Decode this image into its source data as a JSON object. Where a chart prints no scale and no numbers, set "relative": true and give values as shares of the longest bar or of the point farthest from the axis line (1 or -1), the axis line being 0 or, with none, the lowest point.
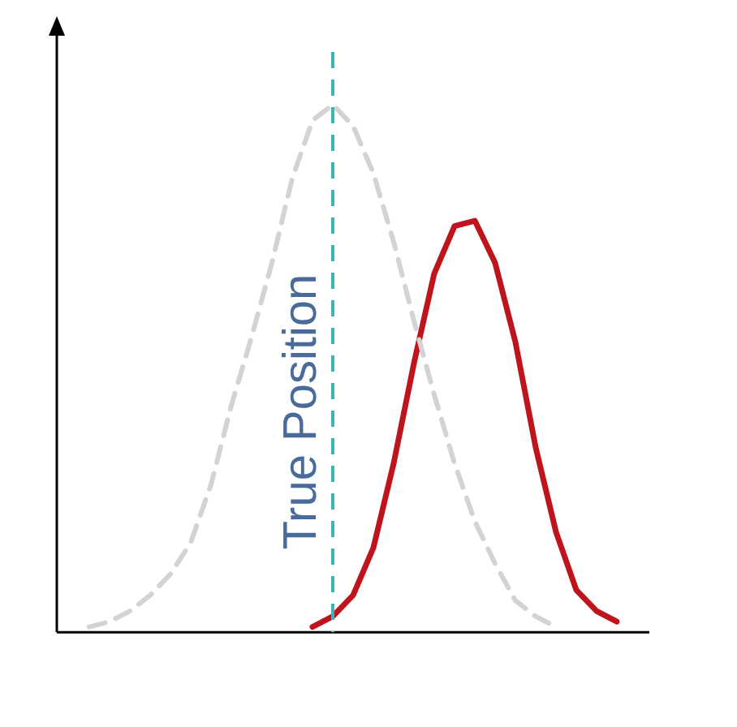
{
  "chart_data": {
    "type": "line",
    "relative": true,
    "marker": "none",
    "categories": [
      null,
      null,
      null,
      null,
      null,
      null,
      null,
      null,
      null,
      null,
      null,
      null,
      null,
      null,
      null,
      null,
      null,
      null,
      null,
      null,
      null,
      null,
      null,
      null,
      null,
      null,
      null
    ],
    "series": [
      {
        "color": "#d3d3d6",
        "line_style": "dashed",
        "values": [
          0.01,
          0.02,
          0.04,
          0.07,
          0.11,
          0.17,
          0.28,
          0.43,
          0.56,
          0.7,
          0.86,
          0.97,
          1,
          0.96,
          0.87,
          0.74,
          0.59,
          0.45,
          0.32,
          0.21,
          0.13,
          0.06,
          0.03,
          0.01,
          null,
          null,
          null
        ]
      },
      {
        "color": "#c0141c",
        "line_style": "solid",
        "values": [
          null,
          null,
          null,
          null,
          null,
          null,
          null,
          null,
          null,
          null,
          null,
          0.01,
          0.03,
          0.07,
          0.16,
          0.32,
          0.51,
          0.68,
          0.77,
          0.78,
          0.7,
          0.55,
          0.35,
          0.19,
          0.08,
          0.04,
          0.02
        ]
      }
    ],
    "annotations": [
      "True Position"
    ]
  }
}
